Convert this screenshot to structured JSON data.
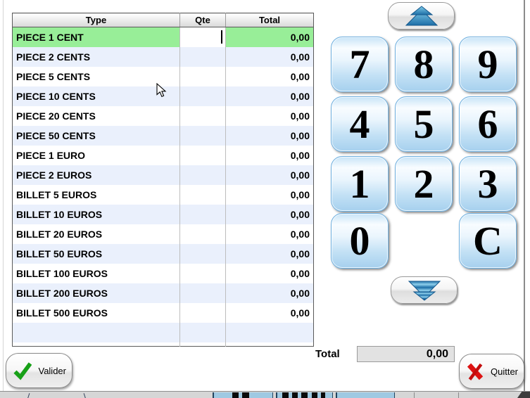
{
  "table": {
    "headers": [
      "Type",
      "Qte",
      "Total"
    ],
    "rows": [
      {
        "type": "PIECE 1 CENT",
        "qte": "",
        "total": "0,00",
        "selected": true
      },
      {
        "type": "PIECE 2 CENTS",
        "qte": "",
        "total": "0,00"
      },
      {
        "type": "PIECE 5 CENTS",
        "qte": "",
        "total": "0,00"
      },
      {
        "type": "PIECE 10 CENTS",
        "qte": "",
        "total": "0,00"
      },
      {
        "type": "PIECE 20 CENTS",
        "qte": "",
        "total": "0,00"
      },
      {
        "type": "PIECE 50 CENTS",
        "qte": "",
        "total": "0,00"
      },
      {
        "type": "PIECE 1 EURO",
        "qte": "",
        "total": "0,00"
      },
      {
        "type": "PIECE 2 EUROS",
        "qte": "",
        "total": "0,00"
      },
      {
        "type": "BILLET 5 EUROS",
        "qte": "",
        "total": "0,00"
      },
      {
        "type": "BILLET 10 EUROS",
        "qte": "",
        "total": "0,00"
      },
      {
        "type": "BILLET 20 EUROS",
        "qte": "",
        "total": "0,00"
      },
      {
        "type": "BILLET 50 EUROS",
        "qte": "",
        "total": "0,00"
      },
      {
        "type": "BILLET 100 EUROS",
        "qte": "",
        "total": "0,00"
      },
      {
        "type": "BILLET 200 EUROS",
        "qte": "",
        "total": "0,00"
      },
      {
        "type": "BILLET 500 EUROS",
        "qte": "",
        "total": "0,00"
      }
    ]
  },
  "keypad": {
    "keys": [
      "7",
      "8",
      "9",
      "4",
      "5",
      "6",
      "1",
      "2",
      "3",
      "0",
      null,
      "C"
    ]
  },
  "footer": {
    "total_label": "Total",
    "total_value": "0,00"
  },
  "actions": {
    "valider_label": "Valider",
    "quitter_label": "Quitter"
  },
  "colors": {
    "selected_row_green": "#98ee98",
    "alt_row_blue": "#eaf0fc",
    "key_blue_light": "#d9edfb",
    "key_blue_dark": "#a6d0ee",
    "key_border_blue": "#6fb0e0",
    "arrow_blue": "#1d6ea7",
    "check_green": "#17a017",
    "x_red": "#dd1111"
  }
}
